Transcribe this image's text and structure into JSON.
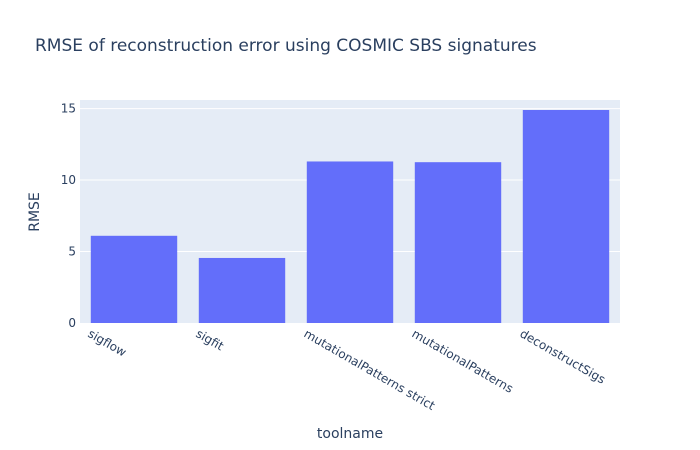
{
  "chart_data": {
    "type": "bar",
    "title": "RMSE of reconstruction error using COSMIC SBS signatures",
    "xlabel": "toolname",
    "ylabel": "RMSE",
    "categories": [
      "sigflow",
      "sigfit",
      "mutationalPatterns strict",
      "mutationalPatterns",
      "deconstructSigs"
    ],
    "values": [
      6.1,
      4.55,
      11.3,
      11.25,
      14.9
    ],
    "ylim": [
      0,
      15.6
    ],
    "yticks": [
      0,
      5,
      10,
      15
    ],
    "grid": true,
    "legend": "none",
    "colors": {
      "bar": "#636efa",
      "plot_bg": "#e5ecf6",
      "grid": "#ffffff",
      "text": "#2a3f5f"
    }
  }
}
